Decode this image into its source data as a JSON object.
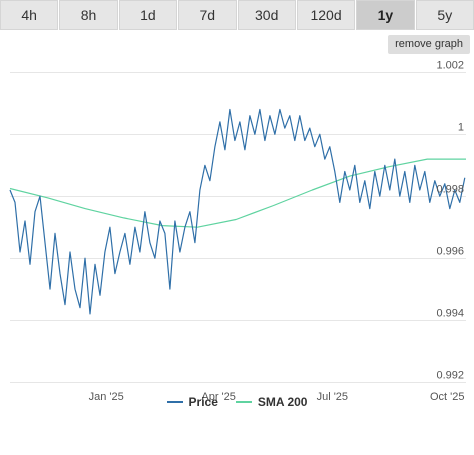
{
  "tabs": [
    {
      "label": "4h",
      "active": false
    },
    {
      "label": "8h",
      "active": false
    },
    {
      "label": "1d",
      "active": false
    },
    {
      "label": "7d",
      "active": false
    },
    {
      "label": "30d",
      "active": false
    },
    {
      "label": "120d",
      "active": false
    },
    {
      "label": "1y",
      "active": true
    },
    {
      "label": "5y",
      "active": false
    }
  ],
  "remove_graph_label": "remove graph",
  "colors": {
    "price": "#2f6fa8",
    "sma": "#5fd3a0"
  },
  "chart_data": {
    "type": "line",
    "x_range": [
      "2024-10-16",
      "2025-10-16"
    ],
    "ylim": [
      0.992,
      1.0024
    ],
    "y_ticks": [
      0.992,
      0.994,
      0.996,
      0.998,
      1,
      1.002
    ],
    "y_tick_labels": [
      "0.992",
      "0.994",
      "0.996",
      "0.998",
      "1",
      "1.002"
    ],
    "x_ticks": [
      "2025-01-01",
      "2025-04-01",
      "2025-07-01",
      "2025-10-01"
    ],
    "x_tick_labels": [
      "Jan '25",
      "Apr '25",
      "Jul '25",
      "Oct '25"
    ],
    "grid": true,
    "legend_position": "bottom",
    "series": [
      {
        "name": "Price",
        "points": [
          [
            "2024-10-16",
            0.9982
          ],
          [
            "2024-10-20",
            0.9978
          ],
          [
            "2024-10-24",
            0.9962
          ],
          [
            "2024-10-28",
            0.9972
          ],
          [
            "2024-11-01",
            0.9958
          ],
          [
            "2024-11-05",
            0.9975
          ],
          [
            "2024-11-09",
            0.998
          ],
          [
            "2024-11-13",
            0.9965
          ],
          [
            "2024-11-17",
            0.995
          ],
          [
            "2024-11-21",
            0.9968
          ],
          [
            "2024-11-25",
            0.9955
          ],
          [
            "2024-11-29",
            0.9945
          ],
          [
            "2024-12-03",
            0.9962
          ],
          [
            "2024-12-07",
            0.995
          ],
          [
            "2024-12-11",
            0.9944
          ],
          [
            "2024-12-15",
            0.996
          ],
          [
            "2024-12-19",
            0.9942
          ],
          [
            "2024-12-23",
            0.9958
          ],
          [
            "2024-12-27",
            0.9948
          ],
          [
            "2024-12-31",
            0.9962
          ],
          [
            "2025-01-04",
            0.997
          ],
          [
            "2025-01-08",
            0.9955
          ],
          [
            "2025-01-12",
            0.9962
          ],
          [
            "2025-01-16",
            0.9968
          ],
          [
            "2025-01-20",
            0.9958
          ],
          [
            "2025-01-24",
            0.997
          ],
          [
            "2025-01-28",
            0.9962
          ],
          [
            "2025-02-01",
            0.9975
          ],
          [
            "2025-02-05",
            0.9965
          ],
          [
            "2025-02-09",
            0.996
          ],
          [
            "2025-02-13",
            0.9972
          ],
          [
            "2025-02-17",
            0.9968
          ],
          [
            "2025-02-21",
            0.995
          ],
          [
            "2025-02-25",
            0.9972
          ],
          [
            "2025-03-01",
            0.9962
          ],
          [
            "2025-03-05",
            0.997
          ],
          [
            "2025-03-09",
            0.9975
          ],
          [
            "2025-03-13",
            0.9965
          ],
          [
            "2025-03-17",
            0.9982
          ],
          [
            "2025-03-21",
            0.999
          ],
          [
            "2025-03-25",
            0.9985
          ],
          [
            "2025-03-29",
            0.9996
          ],
          [
            "2025-04-02",
            1.0004
          ],
          [
            "2025-04-06",
            0.9995
          ],
          [
            "2025-04-10",
            1.0008
          ],
          [
            "2025-04-14",
            0.9998
          ],
          [
            "2025-04-18",
            1.0004
          ],
          [
            "2025-04-22",
            0.9995
          ],
          [
            "2025-04-26",
            1.0006
          ],
          [
            "2025-04-30",
            1.0
          ],
          [
            "2025-05-04",
            1.0008
          ],
          [
            "2025-05-08",
            0.9998
          ],
          [
            "2025-05-12",
            1.0006
          ],
          [
            "2025-05-16",
            1.0
          ],
          [
            "2025-05-20",
            1.0008
          ],
          [
            "2025-05-24",
            1.0002
          ],
          [
            "2025-05-28",
            1.0006
          ],
          [
            "2025-06-01",
            0.9998
          ],
          [
            "2025-06-05",
            1.0006
          ],
          [
            "2025-06-09",
            0.9998
          ],
          [
            "2025-06-13",
            1.0002
          ],
          [
            "2025-06-17",
            0.9996
          ],
          [
            "2025-06-21",
            1.0
          ],
          [
            "2025-06-25",
            0.9992
          ],
          [
            "2025-06-29",
            0.9996
          ],
          [
            "2025-07-03",
            0.9988
          ],
          [
            "2025-07-07",
            0.9978
          ],
          [
            "2025-07-11",
            0.9988
          ],
          [
            "2025-07-15",
            0.9982
          ],
          [
            "2025-07-19",
            0.999
          ],
          [
            "2025-07-23",
            0.9978
          ],
          [
            "2025-07-27",
            0.9985
          ],
          [
            "2025-07-31",
            0.9976
          ],
          [
            "2025-08-04",
            0.9988
          ],
          [
            "2025-08-08",
            0.998
          ],
          [
            "2025-08-12",
            0.999
          ],
          [
            "2025-08-16",
            0.9982
          ],
          [
            "2025-08-20",
            0.9992
          ],
          [
            "2025-08-24",
            0.998
          ],
          [
            "2025-08-28",
            0.9988
          ],
          [
            "2025-09-01",
            0.9978
          ],
          [
            "2025-09-05",
            0.999
          ],
          [
            "2025-09-09",
            0.9982
          ],
          [
            "2025-09-13",
            0.9988
          ],
          [
            "2025-09-17",
            0.9978
          ],
          [
            "2025-09-21",
            0.9985
          ],
          [
            "2025-09-25",
            0.998
          ],
          [
            "2025-09-29",
            0.9984
          ],
          [
            "2025-10-03",
            0.9976
          ],
          [
            "2025-10-07",
            0.9982
          ],
          [
            "2025-10-11",
            0.9978
          ],
          [
            "2025-10-15",
            0.9986
          ]
        ]
      },
      {
        "name": "SMA 200",
        "points": [
          [
            "2024-10-16",
            0.99825
          ],
          [
            "2024-11-15",
            0.99795
          ],
          [
            "2024-12-15",
            0.9976
          ],
          [
            "2025-01-15",
            0.9973
          ],
          [
            "2025-02-15",
            0.99705
          ],
          [
            "2025-03-15",
            0.997
          ],
          [
            "2025-04-15",
            0.99725
          ],
          [
            "2025-05-15",
            0.9977
          ],
          [
            "2025-06-15",
            0.9982
          ],
          [
            "2025-07-15",
            0.99865
          ],
          [
            "2025-08-15",
            0.99895
          ],
          [
            "2025-09-15",
            0.9992
          ],
          [
            "2025-10-16",
            0.9992
          ]
        ]
      }
    ]
  }
}
